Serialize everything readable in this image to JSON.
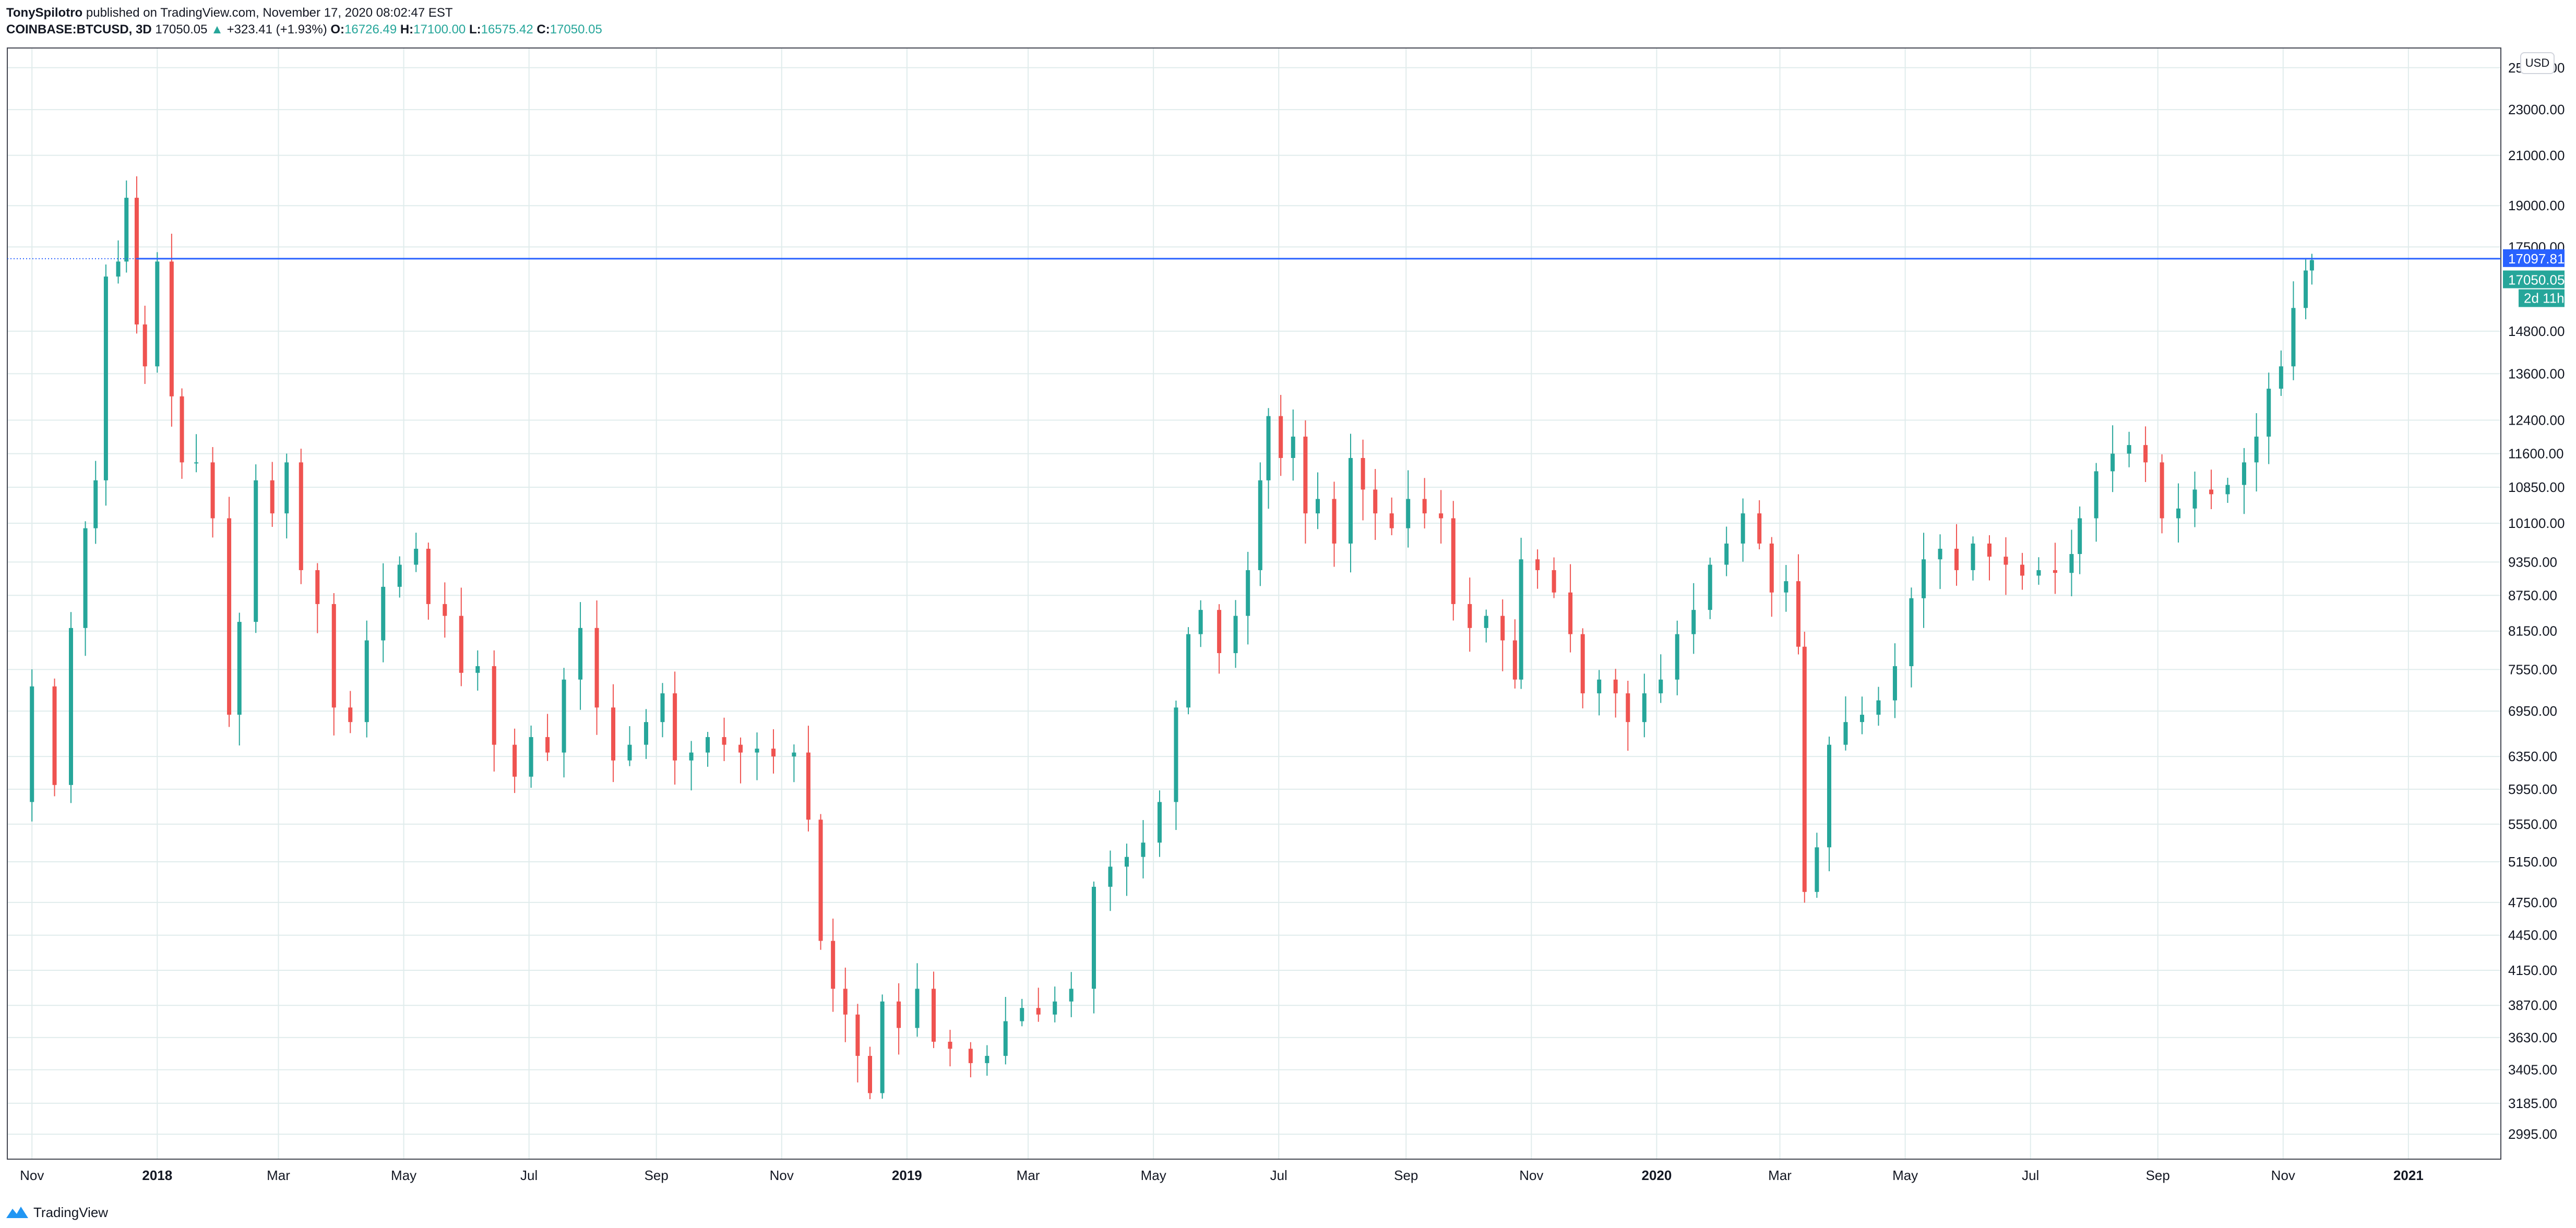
{
  "header": {
    "author": "TonySpilotro",
    "published": "published on TradingView.com, November 17, 2020 08:02:47 EST"
  },
  "legend": {
    "symbol": "COINBASE:BTCUSD, 3D",
    "last": "17050.05",
    "change": "+323.41 (+1.93%)",
    "o_label": "O:",
    "o_value": "16726.49",
    "h_label": "H:",
    "h_value": "17100.00",
    "l_label": "L:",
    "l_value": "16575.42",
    "c_label": "C:",
    "c_value": "17050.05"
  },
  "currency_button": "USD",
  "footer": {
    "brand": "TradingView"
  },
  "colors": {
    "up": "#26a69a",
    "down": "#ef5350",
    "line": "#2962ff",
    "grid": "#e0ecec"
  },
  "chart_data": {
    "type": "candlestick",
    "scale": "log",
    "x_ticks": [
      "Nov",
      "2018",
      "Mar",
      "May",
      "Jul",
      "Sep",
      "Nov",
      "2019",
      "Mar",
      "May",
      "Jul",
      "Sep",
      "Nov",
      "2020",
      "Mar",
      "May",
      "Jul",
      "Sep",
      "Nov",
      "2021"
    ],
    "x_tick_dates": [
      "2017-11-01",
      "2018-01-01",
      "2018-03-01",
      "2018-05-01",
      "2018-07-01",
      "2018-09-01",
      "2018-11-01",
      "2019-01-01",
      "2019-03-01",
      "2019-05-01",
      "2019-07-01",
      "2019-09-01",
      "2019-11-01",
      "2020-01-01",
      "2020-03-01",
      "2020-05-01",
      "2020-07-01",
      "2020-09-01",
      "2020-11-01",
      "2021-01-01"
    ],
    "y_ticks": [
      2995,
      3185,
      3405,
      3630,
      3870,
      4150,
      4450,
      4750,
      5150,
      5550,
      5950,
      6350,
      6950,
      7550,
      8150,
      8750,
      9350,
      10100,
      10850,
      11600,
      12400,
      13600,
      14800,
      17500,
      19000,
      21000,
      23000,
      25000
    ],
    "y_tick_labels": [
      "2995.00",
      "3185.00",
      "3405.00",
      "3630.00",
      "3870.00",
      "4150.00",
      "4450.00",
      "4750.00",
      "5150.00",
      "5550.00",
      "5950.00",
      "6350.00",
      "6950.00",
      "7550.00",
      "8150.00",
      "8750.00",
      "9350.00",
      "10100.00",
      "10850.00",
      "11600.00",
      "12400.00",
      "13600.00",
      "14800.00",
      "17500.00",
      "19000.00",
      "21000.00",
      "23000.00",
      "25000.00"
    ],
    "ylim": [
      2850,
      26000
    ],
    "horizontal_line": {
      "value": 17097.81,
      "label": "17097.81",
      "start_date": "2017-12-22"
    },
    "price_label": "17050.05",
    "countdown_label": "2d 11h",
    "date_range": [
      "2017-10-20",
      "2021-02-15"
    ],
    "closes": [
      {
        "date": "2017-10-20",
        "close": 5800
      },
      {
        "date": "2017-11-01",
        "close": 7300
      },
      {
        "date": "2017-11-12",
        "close": 6000
      },
      {
        "date": "2017-11-20",
        "close": 8200
      },
      {
        "date": "2017-11-27",
        "close": 10000
      },
      {
        "date": "2017-12-02",
        "close": 11000
      },
      {
        "date": "2017-12-07",
        "close": 16500
      },
      {
        "date": "2017-12-13",
        "close": 17000
      },
      {
        "date": "2017-12-17",
        "close": 19300
      },
      {
        "date": "2017-12-22",
        "close": 15000
      },
      {
        "date": "2017-12-26",
        "close": 13800
      },
      {
        "date": "2018-01-01",
        "close": 17000
      },
      {
        "date": "2018-01-08",
        "close": 13000
      },
      {
        "date": "2018-01-13",
        "close": 11400
      },
      {
        "date": "2018-01-20",
        "close": 11400
      },
      {
        "date": "2018-01-28",
        "close": 10200
      },
      {
        "date": "2018-02-05",
        "close": 6900
      },
      {
        "date": "2018-02-10",
        "close": 8300
      },
      {
        "date": "2018-02-18",
        "close": 11000
      },
      {
        "date": "2018-02-26",
        "close": 10300
      },
      {
        "date": "2018-03-05",
        "close": 11400
      },
      {
        "date": "2018-03-12",
        "close": 9200
      },
      {
        "date": "2018-03-20",
        "close": 8600
      },
      {
        "date": "2018-03-28",
        "close": 7000
      },
      {
        "date": "2018-04-05",
        "close": 6800
      },
      {
        "date": "2018-04-13",
        "close": 8000
      },
      {
        "date": "2018-04-21",
        "close": 8900
      },
      {
        "date": "2018-04-29",
        "close": 9300
      },
      {
        "date": "2018-05-07",
        "close": 9600
      },
      {
        "date": "2018-05-13",
        "close": 8600
      },
      {
        "date": "2018-05-21",
        "close": 8400
      },
      {
        "date": "2018-05-29",
        "close": 7500
      },
      {
        "date": "2018-06-06",
        "close": 7600
      },
      {
        "date": "2018-06-14",
        "close": 6500
      },
      {
        "date": "2018-06-24",
        "close": 6100
      },
      {
        "date": "2018-07-02",
        "close": 6600
      },
      {
        "date": "2018-07-10",
        "close": 6400
      },
      {
        "date": "2018-07-18",
        "close": 7400
      },
      {
        "date": "2018-07-26",
        "close": 8200
      },
      {
        "date": "2018-08-03",
        "close": 7000
      },
      {
        "date": "2018-08-11",
        "close": 6300
      },
      {
        "date": "2018-08-19",
        "close": 6500
      },
      {
        "date": "2018-08-27",
        "close": 6800
      },
      {
        "date": "2018-09-04",
        "close": 7200
      },
      {
        "date": "2018-09-10",
        "close": 6300
      },
      {
        "date": "2018-09-18",
        "close": 6400
      },
      {
        "date": "2018-09-26",
        "close": 6600
      },
      {
        "date": "2018-10-04",
        "close": 6500
      },
      {
        "date": "2018-10-12",
        "close": 6400
      },
      {
        "date": "2018-10-20",
        "close": 6450
      },
      {
        "date": "2018-10-28",
        "close": 6350
      },
      {
        "date": "2018-11-07",
        "close": 6400
      },
      {
        "date": "2018-11-14",
        "close": 5600
      },
      {
        "date": "2018-11-20",
        "close": 4400
      },
      {
        "date": "2018-11-26",
        "close": 4000
      },
      {
        "date": "2018-12-02",
        "close": 3800
      },
      {
        "date": "2018-12-08",
        "close": 3500
      },
      {
        "date": "2018-12-14",
        "close": 3250
      },
      {
        "date": "2018-12-20",
        "close": 3900
      },
      {
        "date": "2018-12-28",
        "close": 3700
      },
      {
        "date": "2019-01-06",
        "close": 4000
      },
      {
        "date": "2019-01-14",
        "close": 3600
      },
      {
        "date": "2019-01-22",
        "close": 3550
      },
      {
        "date": "2019-02-01",
        "close": 3450
      },
      {
        "date": "2019-02-09",
        "close": 3500
      },
      {
        "date": "2019-02-18",
        "close": 3750
      },
      {
        "date": "2019-02-26",
        "close": 3850
      },
      {
        "date": "2019-03-06",
        "close": 3800
      },
      {
        "date": "2019-03-14",
        "close": 3900
      },
      {
        "date": "2019-03-22",
        "close": 4000
      },
      {
        "date": "2019-04-02",
        "close": 4900
      },
      {
        "date": "2019-04-10",
        "close": 5100
      },
      {
        "date": "2019-04-18",
        "close": 5200
      },
      {
        "date": "2019-04-26",
        "close": 5350
      },
      {
        "date": "2019-05-04",
        "close": 5800
      },
      {
        "date": "2019-05-12",
        "close": 7000
      },
      {
        "date": "2019-05-18",
        "close": 8100
      },
      {
        "date": "2019-05-24",
        "close": 8500
      },
      {
        "date": "2019-06-02",
        "close": 7800
      },
      {
        "date": "2019-06-10",
        "close": 8400
      },
      {
        "date": "2019-06-16",
        "close": 9200
      },
      {
        "date": "2019-06-22",
        "close": 11000
      },
      {
        "date": "2019-06-26",
        "close": 12500
      },
      {
        "date": "2019-07-02",
        "close": 11500
      },
      {
        "date": "2019-07-08",
        "close": 12000
      },
      {
        "date": "2019-07-14",
        "close": 10300
      },
      {
        "date": "2019-07-20",
        "close": 10600
      },
      {
        "date": "2019-07-28",
        "close": 9700
      },
      {
        "date": "2019-08-05",
        "close": 11500
      },
      {
        "date": "2019-08-11",
        "close": 10800
      },
      {
        "date": "2019-08-17",
        "close": 10300
      },
      {
        "date": "2019-08-25",
        "close": 10000
      },
      {
        "date": "2019-09-02",
        "close": 10600
      },
      {
        "date": "2019-09-10",
        "close": 10300
      },
      {
        "date": "2019-09-18",
        "close": 10200
      },
      {
        "date": "2019-09-24",
        "close": 8600
      },
      {
        "date": "2019-10-02",
        "close": 8200
      },
      {
        "date": "2019-10-10",
        "close": 8400
      },
      {
        "date": "2019-10-18",
        "close": 8000
      },
      {
        "date": "2019-10-24",
        "close": 7400
      },
      {
        "date": "2019-10-27",
        "close": 9400
      },
      {
        "date": "2019-11-04",
        "close": 9200
      },
      {
        "date": "2019-11-12",
        "close": 8800
      },
      {
        "date": "2019-11-20",
        "close": 8100
      },
      {
        "date": "2019-11-26",
        "close": 7200
      },
      {
        "date": "2019-12-04",
        "close": 7400
      },
      {
        "date": "2019-12-12",
        "close": 7200
      },
      {
        "date": "2019-12-18",
        "close": 6800
      },
      {
        "date": "2019-12-26",
        "close": 7200
      },
      {
        "date": "2020-01-03",
        "close": 7400
      },
      {
        "date": "2020-01-11",
        "close": 8100
      },
      {
        "date": "2020-01-19",
        "close": 8500
      },
      {
        "date": "2020-01-27",
        "close": 9300
      },
      {
        "date": "2020-02-04",
        "close": 9700
      },
      {
        "date": "2020-02-12",
        "close": 10300
      },
      {
        "date": "2020-02-20",
        "close": 9700
      },
      {
        "date": "2020-02-26",
        "close": 8800
      },
      {
        "date": "2020-03-04",
        "close": 9000
      },
      {
        "date": "2020-03-10",
        "close": 7900
      },
      {
        "date": "2020-03-13",
        "close": 4850
      },
      {
        "date": "2020-03-19",
        "close": 5300
      },
      {
        "date": "2020-03-25",
        "close": 6500
      },
      {
        "date": "2020-04-02",
        "close": 6800
      },
      {
        "date": "2020-04-10",
        "close": 6900
      },
      {
        "date": "2020-04-18",
        "close": 7100
      },
      {
        "date": "2020-04-26",
        "close": 7600
      },
      {
        "date": "2020-05-04",
        "close": 8700
      },
      {
        "date": "2020-05-10",
        "close": 9400
      },
      {
        "date": "2020-05-18",
        "close": 9600
      },
      {
        "date": "2020-05-26",
        "close": 9200
      },
      {
        "date": "2020-06-03",
        "close": 9700
      },
      {
        "date": "2020-06-11",
        "close": 9450
      },
      {
        "date": "2020-06-19",
        "close": 9300
      },
      {
        "date": "2020-06-27",
        "close": 9100
      },
      {
        "date": "2020-07-05",
        "close": 9200
      },
      {
        "date": "2020-07-13",
        "close": 9150
      },
      {
        "date": "2020-07-21",
        "close": 9500
      },
      {
        "date": "2020-07-25",
        "close": 10200
      },
      {
        "date": "2020-08-02",
        "close": 11200
      },
      {
        "date": "2020-08-10",
        "close": 11600
      },
      {
        "date": "2020-08-18",
        "close": 11800
      },
      {
        "date": "2020-08-26",
        "close": 11400
      },
      {
        "date": "2020-09-03",
        "close": 10200
      },
      {
        "date": "2020-09-11",
        "close": 10400
      },
      {
        "date": "2020-09-19",
        "close": 10800
      },
      {
        "date": "2020-09-27",
        "close": 10700
      },
      {
        "date": "2020-10-05",
        "close": 10900
      },
      {
        "date": "2020-10-13",
        "close": 11400
      },
      {
        "date": "2020-10-19",
        "close": 12000
      },
      {
        "date": "2020-10-25",
        "close": 13200
      },
      {
        "date": "2020-10-31",
        "close": 13800
      },
      {
        "date": "2020-11-06",
        "close": 15500
      },
      {
        "date": "2020-11-12",
        "close": 16700
      },
      {
        "date": "2020-11-15",
        "close": 17050
      }
    ]
  }
}
